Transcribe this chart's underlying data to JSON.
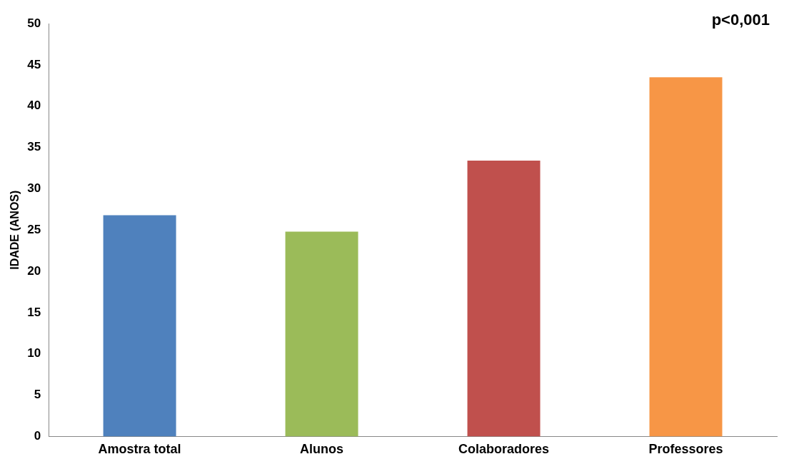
{
  "chart_data": {
    "type": "bar",
    "ylabel": "IDADE (ANOS)",
    "categories": [
      "Amostra total",
      "Alunos",
      "Colaboradores",
      "Professores"
    ],
    "values": [
      26.8,
      24.8,
      33.4,
      43.5
    ],
    "colors": [
      "#4f81bd",
      "#9bbb59",
      "#c0504d",
      "#f79646"
    ],
    "ylim": [
      0,
      50
    ],
    "yticks": [
      0,
      5,
      10,
      15,
      20,
      25,
      30,
      35,
      40,
      45,
      50
    ],
    "annotations": [
      "p<0,001"
    ]
  }
}
